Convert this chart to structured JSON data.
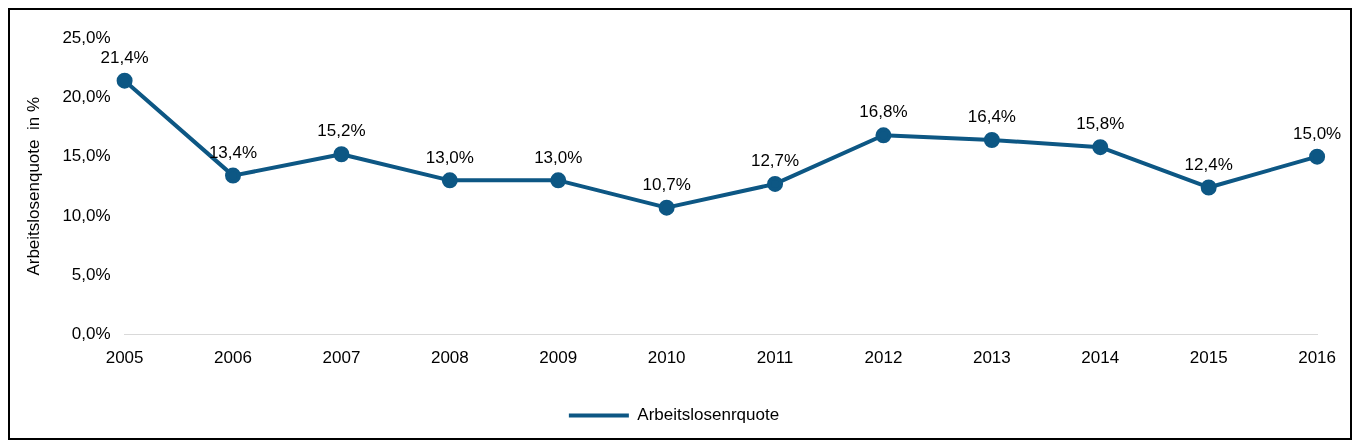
{
  "chart_data": {
    "type": "line",
    "ylabel": "Arbeitslosenquote  in %",
    "categories": [
      "2005",
      "2006",
      "2007",
      "2008",
      "2009",
      "2010",
      "2011",
      "2012",
      "2013",
      "2014",
      "2015",
      "2016"
    ],
    "series": [
      {
        "name": "Arbeitslosenrquote",
        "color": "#0d5784",
        "values": [
          21.4,
          13.4,
          15.2,
          13.0,
          13.0,
          10.7,
          12.7,
          16.8,
          16.4,
          15.8,
          12.4,
          15.0
        ],
        "value_labels": [
          "21,4%",
          "13,4%",
          "15,2%",
          "13,0%",
          "13,0%",
          "10,7%",
          "12,7%",
          "16,8%",
          "16,4%",
          "15,8%",
          "12,4%",
          "15,0%"
        ]
      }
    ],
    "ylim": [
      0,
      25
    ],
    "yticks": [
      {
        "value": 0,
        "label": "0,0%"
      },
      {
        "value": 5,
        "label": "5,0%"
      },
      {
        "value": 10,
        "label": "10,0%"
      },
      {
        "value": 15,
        "label": "15,0%"
      },
      {
        "value": 20,
        "label": "20,0%"
      },
      {
        "value": 25,
        "label": "25,0%"
      }
    ],
    "legend": "bottom",
    "marker": "circle",
    "line_style": "solid"
  }
}
